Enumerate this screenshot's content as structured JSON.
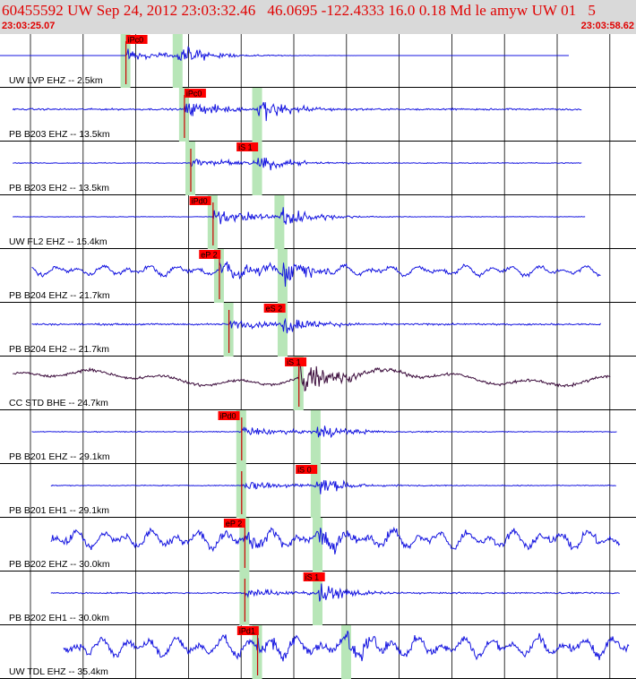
{
  "header": {
    "title": "60455592 UW Sep 24, 2012 23:03:32.46   46.0695 -122.4333 16.0 0.18 Md le amyw UW 01   5",
    "start_time": "23:03:25.07",
    "end_time": "23:03:58.62"
  },
  "colors": {
    "trace": "#1515e0",
    "trace_dark": "#3a0a3a",
    "pick_box": "#ff0000",
    "pick_text": "#000000",
    "band": "#b8e6b8",
    "grid": "#000000",
    "header_bg": "#d9d9d9",
    "header_text": "#e00000"
  },
  "chart_data": {
    "type": "line",
    "title": "60455592 UW Sep 24, 2012 23:03:32.46   46.0695 -122.4333 16.0 0.18 Md le amyw UW 01   5",
    "time_range": [
      "23:03:25.07",
      "23:03:58.62"
    ],
    "vertical_gridlines": 13,
    "series": [
      {
        "name": "UW LVP EHZ -- 2.5km",
        "picks": [
          {
            "label": "iPc0",
            "pos": 0.198
          }
        ],
        "onset": 0.198,
        "s_time": 0.28,
        "start": 0.0,
        "end": 0.895,
        "pre_amp": 0.0,
        "event_amp": 0.6,
        "noise": "quiet",
        "color": "trace"
      },
      {
        "name": "PB B203 EHZ -- 13.5km",
        "picks": [
          {
            "label": "iPc0",
            "pos": 0.29
          }
        ],
        "onset": 0.29,
        "s_time": 0.405,
        "start": 0.02,
        "end": 0.915,
        "pre_amp": 0.06,
        "event_amp": 0.8,
        "noise": "low",
        "color": "trace"
      },
      {
        "name": "PB B203 EH2 -- 13.5km",
        "picks": [
          {
            "label": "iS 1",
            "pos": 0.372
          }
        ],
        "onset": 0.3,
        "s_time": 0.405,
        "start": 0.02,
        "end": 0.915,
        "pre_amp": 0.03,
        "event_amp": 0.6,
        "noise": "low",
        "color": "trace"
      },
      {
        "name": "UW FL2 EHZ -- 15.4km",
        "picks": [
          {
            "label": "iPd0",
            "pos": 0.298
          }
        ],
        "onset": 0.335,
        "s_time": 0.44,
        "start": 0.02,
        "end": 0.92,
        "pre_amp": 0.02,
        "event_amp": 0.85,
        "noise": "low",
        "color": "trace"
      },
      {
        "name": "PB B204 EHZ -- 21.7km",
        "picks": [
          {
            "label": "eP 2",
            "pos": 0.313
          }
        ],
        "onset": 0.345,
        "s_time": 0.445,
        "start": 0.05,
        "end": 0.945,
        "pre_amp": 0.28,
        "event_amp": 0.9,
        "noise": "high",
        "color": "trace"
      },
      {
        "name": "PB B204 EH2 -- 21.7km",
        "picks": [
          {
            "label": "eS 2",
            "pos": 0.415
          }
        ],
        "onset": 0.36,
        "s_time": 0.445,
        "start": 0.05,
        "end": 0.945,
        "pre_amp": 0.06,
        "event_amp": 0.6,
        "noise": "low",
        "color": "trace"
      },
      {
        "name": "CC STD BHE -- 24.7km",
        "picks": [
          {
            "label": "iS 1",
            "pos": 0.448
          }
        ],
        "onset": 0.47,
        "s_time": 0.47,
        "start": 0.02,
        "end": 0.96,
        "pre_amp": 0.3,
        "event_amp": 0.9,
        "noise": "lowfreq",
        "color": "trace_dark"
      },
      {
        "name": "PB B201 EHZ -- 29.1km",
        "picks": [
          {
            "label": "iPd0",
            "pos": 0.343
          }
        ],
        "onset": 0.38,
        "s_time": 0.497,
        "start": 0.05,
        "end": 0.97,
        "pre_amp": 0.03,
        "event_amp": 0.6,
        "noise": "low",
        "color": "trace"
      },
      {
        "name": "PB B201 EH1 -- 29.1km",
        "picks": [
          {
            "label": "iS 0",
            "pos": 0.465
          }
        ],
        "onset": 0.38,
        "s_time": 0.497,
        "start": 0.08,
        "end": 0.97,
        "pre_amp": 0.03,
        "event_amp": 0.6,
        "noise": "low",
        "color": "trace"
      },
      {
        "name": "PB B202 EHZ -- 30.0km",
        "picks": [
          {
            "label": "eP 2",
            "pos": 0.352
          }
        ],
        "onset": 0.385,
        "s_time": 0.5,
        "start": 0.08,
        "end": 0.975,
        "pre_amp": 0.5,
        "event_amp": 0.8,
        "noise": "high",
        "color": "trace"
      },
      {
        "name": "PB B202 EH1 -- 30.0km",
        "picks": [
          {
            "label": "iS 1",
            "pos": 0.477
          }
        ],
        "onset": 0.385,
        "s_time": 0.5,
        "start": 0.08,
        "end": 0.975,
        "pre_amp": 0.05,
        "event_amp": 0.6,
        "noise": "low",
        "color": "trace"
      },
      {
        "name": "UW TDL EHZ -- 35.4km",
        "picks": [
          {
            "label": "iPd1",
            "pos": 0.373
          }
        ],
        "onset": 0.405,
        "s_time": 0.545,
        "start": 0.1,
        "end": 0.99,
        "pre_amp": 0.55,
        "event_amp": 0.9,
        "noise": "high",
        "color": "trace"
      }
    ]
  }
}
